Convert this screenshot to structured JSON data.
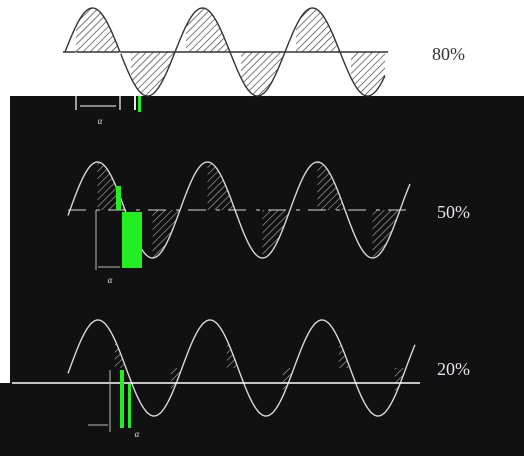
{
  "figure": {
    "panels": [
      {
        "id": "top",
        "duty_label": "80%",
        "duty_percent": 80,
        "angle_symbol": "α"
      },
      {
        "id": "middle",
        "duty_label": "50%",
        "duty_percent": 50,
        "angle_symbol": "α"
      },
      {
        "id": "bottom",
        "duty_label": "20%",
        "duty_percent": 20,
        "angle_symbol": "α"
      }
    ]
  },
  "colors": {
    "background": "#ffffff",
    "dark_overlay": "#111111",
    "wave_stroke": "#333333",
    "wave_stroke_light": "#d8d8d8",
    "green_artifact": "#22ee22",
    "label_light": "#e8e0ea"
  }
}
